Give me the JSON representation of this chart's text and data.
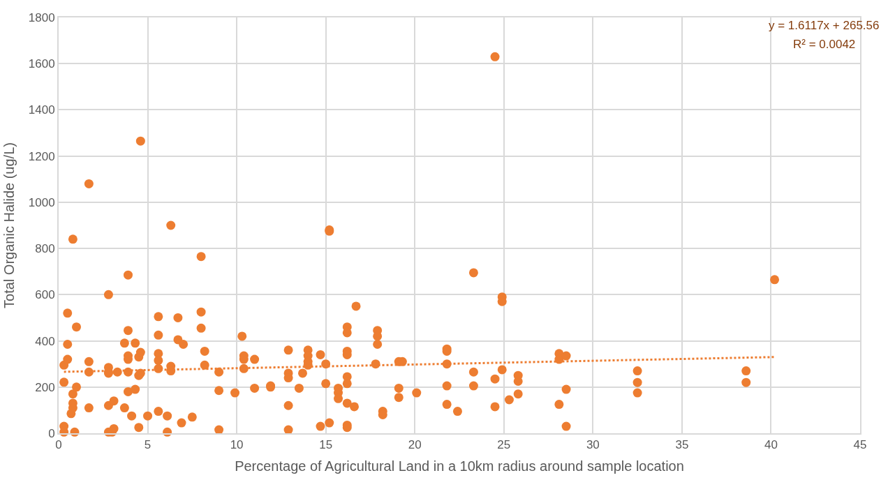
{
  "chart_data": {
    "type": "scatter",
    "xlabel": "Percentage of Agricultural Land in a 10km radius around sample location",
    "ylabel": "Total Organic Halide (ug/L)",
    "xlim": [
      0,
      45
    ],
    "xticks": [
      0,
      5,
      10,
      15,
      20,
      25,
      30,
      35,
      40,
      45
    ],
    "ylim": [
      0,
      1800
    ],
    "yticks": [
      0,
      200,
      400,
      600,
      800,
      1000,
      1200,
      1400,
      1600,
      1800
    ],
    "grid": true,
    "series": [
      {
        "color": "#ed7d31",
        "marker": "circle",
        "x": [
          0.3,
          0.3,
          0.3,
          0.3,
          0.5,
          0.5,
          0.5,
          0.7,
          0.8,
          0.8,
          0.8,
          0.8,
          0.9,
          1.0,
          1.0,
          1.7,
          1.7,
          1.7,
          1.7,
          2.8,
          2.8,
          2.8,
          2.8,
          2.8,
          2.8,
          3.0,
          3.1,
          3.1,
          3.3,
          3.7,
          3.7,
          3.9,
          3.9,
          3.9,
          3.9,
          3.9,
          3.9,
          4.1,
          4.3,
          4.3,
          4.5,
          4.5,
          4.5,
          4.6,
          4.6,
          4.6,
          5.0,
          5.6,
          5.6,
          5.6,
          5.6,
          5.6,
          5.6,
          6.1,
          6.1,
          6.3,
          6.3,
          6.3,
          6.7,
          6.7,
          6.9,
          7.0,
          7.5,
          8.0,
          8.0,
          8.0,
          8.2,
          8.2,
          9.0,
          9.0,
          9.0,
          9.9,
          10.3,
          10.4,
          10.4,
          10.4,
          11.0,
          11.0,
          11.9,
          11.9,
          12.9,
          12.9,
          12.9,
          12.9,
          12.9,
          13.5,
          13.7,
          14.0,
          14.0,
          14.0,
          14.0,
          14.7,
          14.7,
          15.0,
          15.0,
          15.2,
          15.2,
          15.2,
          15.7,
          15.7,
          15.7,
          16.2,
          16.2,
          16.2,
          16.2,
          16.2,
          16.2,
          16.2,
          16.2,
          16.2,
          16.6,
          16.7,
          17.8,
          17.9,
          17.9,
          17.9,
          18.2,
          18.2,
          19.1,
          19.1,
          19.1,
          19.3,
          20.1,
          21.8,
          21.8,
          21.8,
          21.8,
          21.8,
          22.4,
          23.3,
          23.3,
          23.3,
          24.5,
          24.5,
          24.5,
          24.9,
          24.9,
          24.9,
          25.3,
          25.8,
          25.8,
          25.8,
          28.1,
          28.1,
          28.1,
          28.5,
          28.5,
          28.5,
          32.5,
          32.5,
          32.5,
          38.6,
          38.6,
          40.2
        ],
        "values": [
          221,
          5,
          295,
          30,
          520,
          385,
          320,
          85,
          840,
          170,
          110,
          130,
          5,
          460,
          200,
          1080,
          310,
          265,
          110,
          600,
          285,
          265,
          260,
          120,
          5,
          5,
          20,
          140,
          265,
          390,
          110,
          685,
          445,
          335,
          320,
          265,
          180,
          75,
          390,
          190,
          330,
          250,
          25,
          1265,
          350,
          260,
          75,
          505,
          425,
          345,
          315,
          280,
          95,
          5,
          75,
          900,
          290,
          270,
          500,
          405,
          45,
          385,
          70,
          765,
          525,
          455,
          355,
          295,
          265,
          185,
          15,
          175,
          420,
          335,
          320,
          280,
          195,
          320,
          200,
          205,
          360,
          260,
          240,
          120,
          15,
          195,
          260,
          360,
          335,
          310,
          295,
          340,
          30,
          300,
          215,
          875,
          880,
          45,
          195,
          175,
          150,
          460,
          435,
          355,
          340,
          245,
          215,
          130,
          25,
          35,
          115,
          550,
          300,
          445,
          420,
          385,
          95,
          80,
          310,
          195,
          155,
          310,
          175,
          365,
          355,
          300,
          205,
          125,
          95,
          695,
          265,
          205,
          1630,
          235,
          115,
          590,
          570,
          275,
          145,
          250,
          225,
          170,
          345,
          320,
          125,
          335,
          190,
          30,
          270,
          220,
          175,
          270,
          220,
          665
        ]
      },
      {
        "type": "line",
        "color": "#ed7d31",
        "marker": "none",
        "line_style": "dotted",
        "x": [
          0.3,
          40.2
        ],
        "values": [
          266,
          330
        ]
      }
    ],
    "annotations": [
      "y = 1.6117x + 265.56",
      "R² = 0.0042"
    ]
  }
}
